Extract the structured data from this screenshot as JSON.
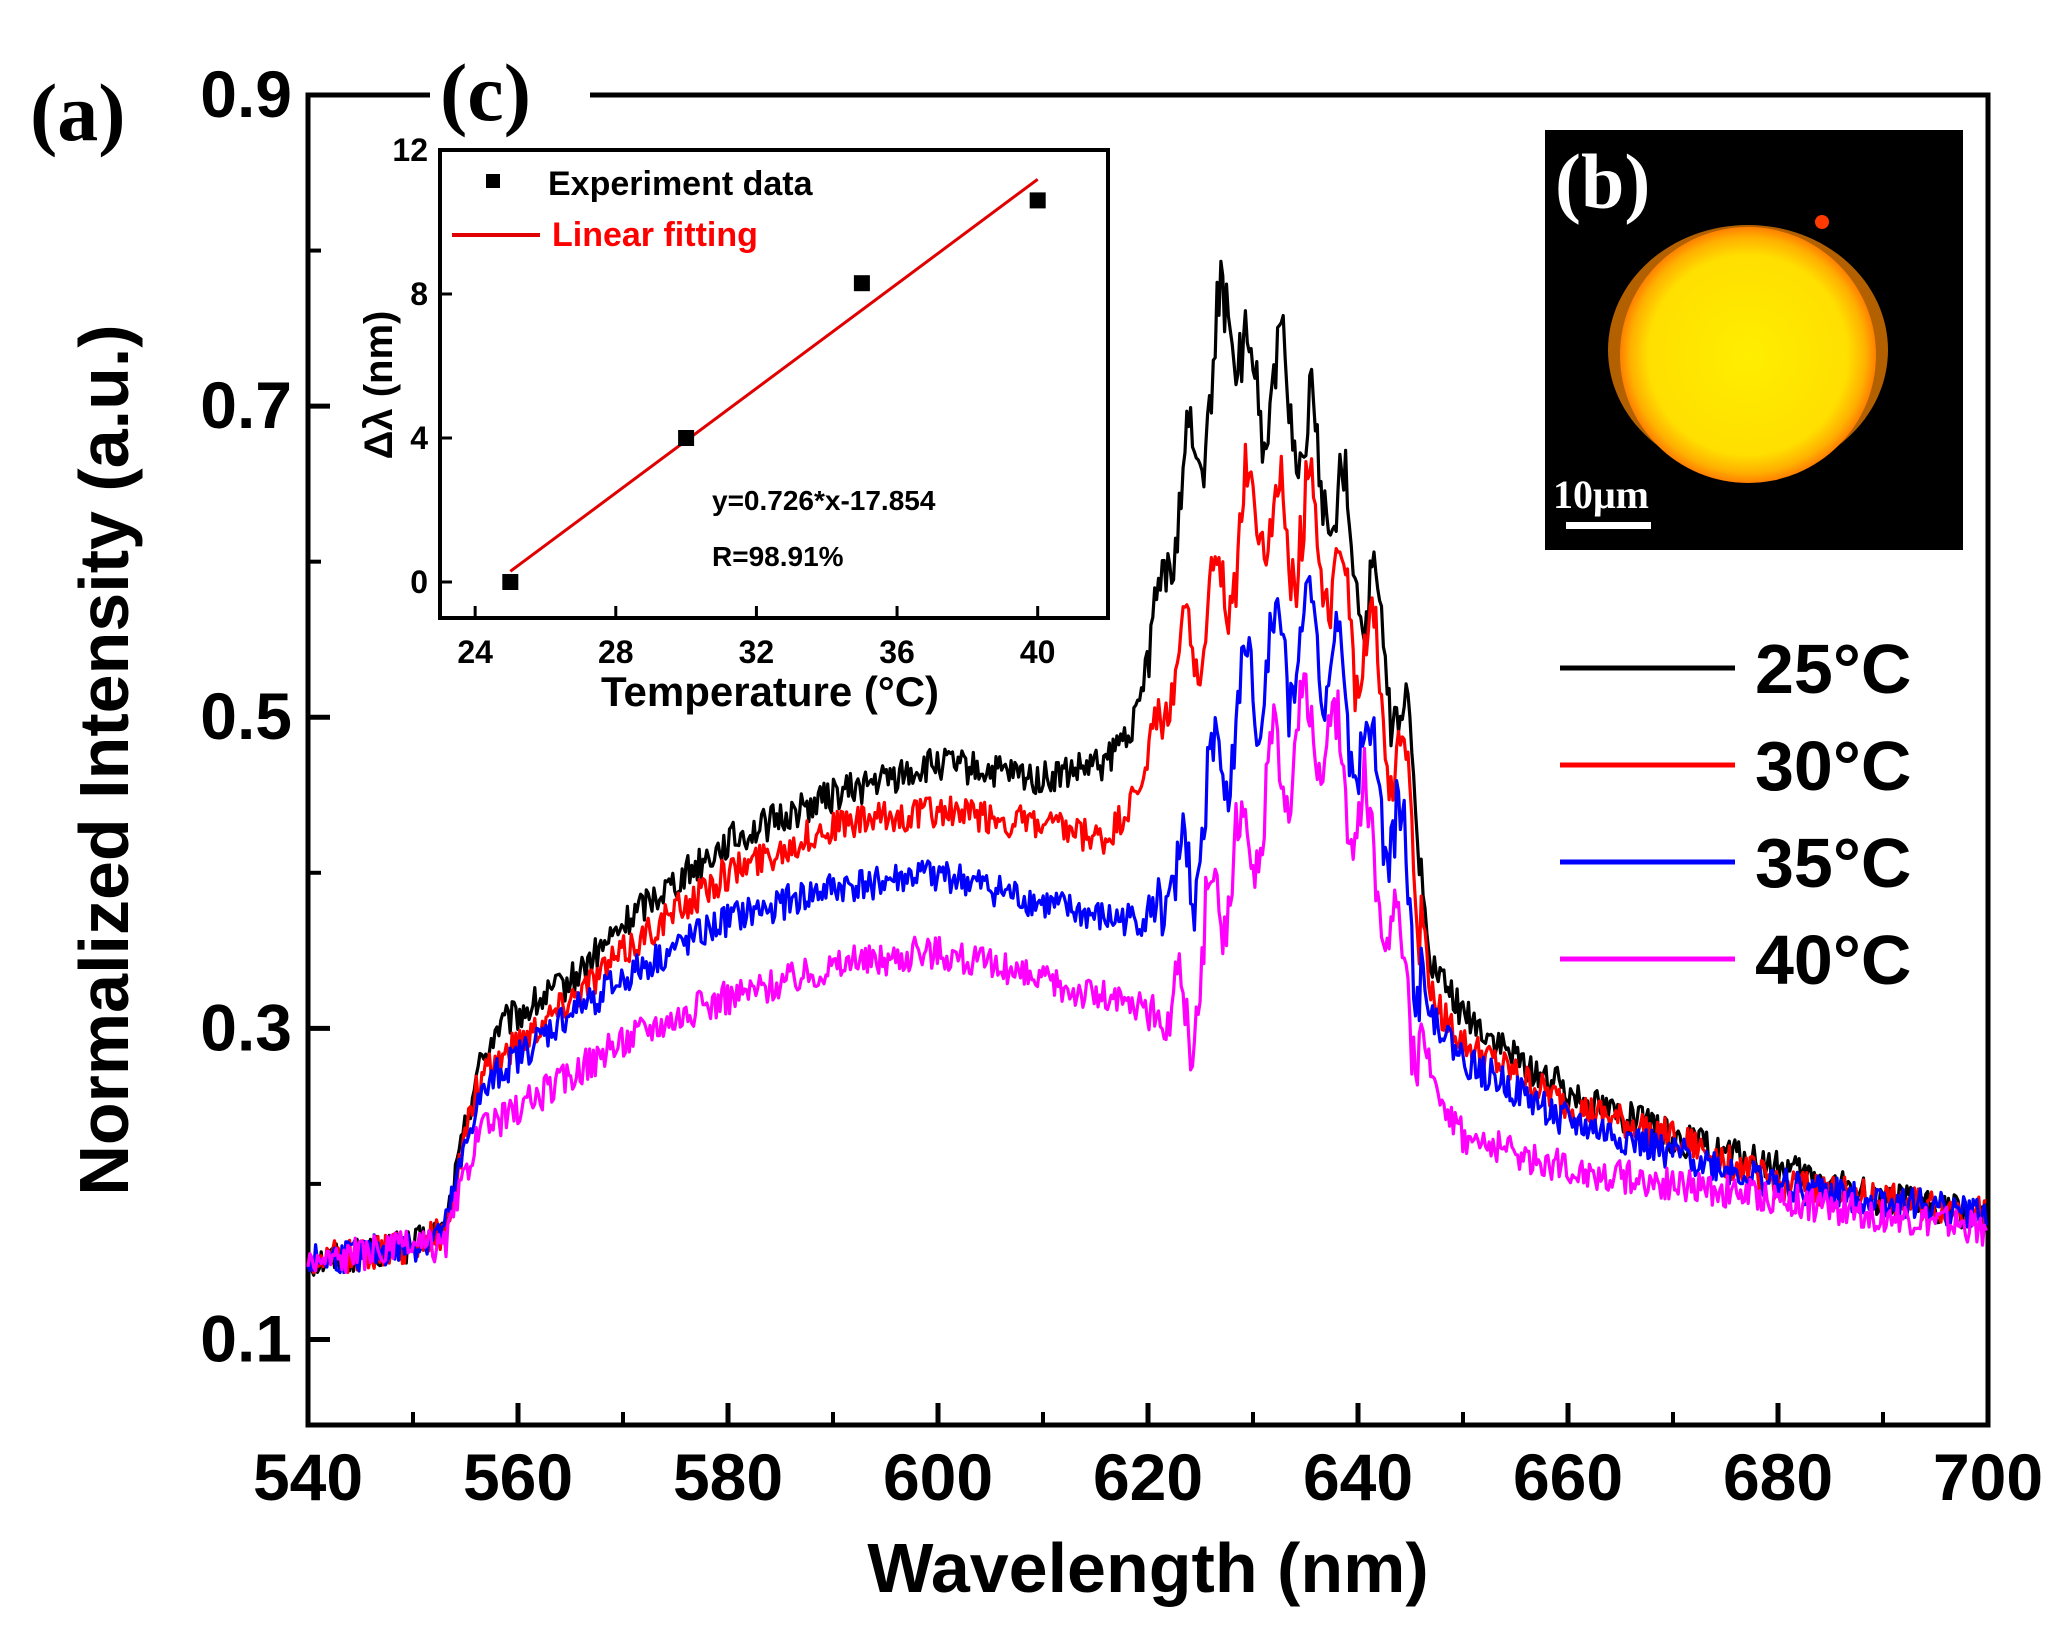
{
  "panel_labels": {
    "a": "(a)",
    "b": "(b)",
    "c": "(c)"
  },
  "colors": {
    "series_25": "#000000",
    "series_30": "#ff0000",
    "series_35": "#0000ff",
    "series_40": "#ff00ff",
    "fit_line": "#e00000",
    "micro_bg": "#000000",
    "micro_glow": "#ffa000",
    "micro_core": "#ffe800"
  },
  "micrograph": {
    "scale_bar_label": "10μm"
  },
  "chart_data": [
    {
      "id": "main",
      "type": "line",
      "xlabel": "Wavelength (nm)",
      "ylabel": "Normalized Intensity (a.u.)",
      "xlim": [
        540,
        700
      ],
      "ylim": [
        0.045,
        0.9
      ],
      "x_ticks": [
        540,
        560,
        580,
        600,
        620,
        640,
        660,
        680,
        700
      ],
      "y_ticks": [
        0.1,
        0.3,
        0.5,
        0.7,
        0.9
      ],
      "x_minor_ticks": [
        550,
        570,
        590,
        610,
        630,
        650,
        670,
        690
      ],
      "y_minor_ticks": [
        0.2,
        0.4,
        0.6,
        0.8
      ],
      "legend_position": "right",
      "series": [
        {
          "name": "25°C",
          "color": "#000000",
          "points": [
            [
              540,
              0.15
            ],
            [
              550,
              0.16
            ],
            [
              553,
              0.17
            ],
            [
              556,
              0.27
            ],
            [
              558,
              0.3
            ],
            [
              565,
              0.33
            ],
            [
              572,
              0.38
            ],
            [
              580,
              0.42
            ],
            [
              590,
              0.45
            ],
            [
              600,
              0.47
            ],
            [
              610,
              0.46
            ],
            [
              616,
              0.47
            ],
            [
              619,
              0.5
            ],
            [
              622,
              0.62
            ],
            [
              625,
              0.68
            ],
            [
              628,
              0.77
            ],
            [
              630,
              0.7
            ],
            [
              633,
              0.72
            ],
            [
              636,
              0.66
            ],
            [
              639,
              0.62
            ],
            [
              642,
              0.56
            ],
            [
              645,
              0.47
            ],
            [
              647,
              0.34
            ],
            [
              650,
              0.31
            ],
            [
              655,
              0.28
            ],
            [
              660,
              0.26
            ],
            [
              670,
              0.23
            ],
            [
              680,
              0.21
            ],
            [
              690,
              0.19
            ],
            [
              700,
              0.18
            ]
          ]
        },
        {
          "name": "30°C",
          "color": "#ff0000",
          "points": [
            [
              540,
              0.15
            ],
            [
              550,
              0.16
            ],
            [
              553,
              0.17
            ],
            [
              556,
              0.26
            ],
            [
              558,
              0.28
            ],
            [
              565,
              0.32
            ],
            [
              572,
              0.36
            ],
            [
              580,
              0.4
            ],
            [
              590,
              0.43
            ],
            [
              600,
              0.44
            ],
            [
              610,
              0.43
            ],
            [
              616,
              0.42
            ],
            [
              619,
              0.45
            ],
            [
              622,
              0.52
            ],
            [
              625,
              0.56
            ],
            [
              628,
              0.6
            ],
            [
              630,
              0.64
            ],
            [
              633,
              0.62
            ],
            [
              636,
              0.62
            ],
            [
              639,
              0.57
            ],
            [
              642,
              0.52
            ],
            [
              645,
              0.44
            ],
            [
              647,
              0.32
            ],
            [
              650,
              0.29
            ],
            [
              655,
              0.27
            ],
            [
              660,
              0.25
            ],
            [
              670,
              0.23
            ],
            [
              680,
              0.2
            ],
            [
              690,
              0.19
            ],
            [
              700,
              0.18
            ]
          ]
        },
        {
          "name": "35°C",
          "color": "#0000ff",
          "points": [
            [
              540,
              0.15
            ],
            [
              550,
              0.16
            ],
            [
              553,
              0.17
            ],
            [
              556,
              0.25
            ],
            [
              558,
              0.27
            ],
            [
              565,
              0.31
            ],
            [
              572,
              0.34
            ],
            [
              580,
              0.37
            ],
            [
              590,
              0.39
            ],
            [
              600,
              0.4
            ],
            [
              610,
              0.38
            ],
            [
              616,
              0.37
            ],
            [
              620,
              0.37
            ],
            [
              624,
              0.4
            ],
            [
              627,
              0.48
            ],
            [
              630,
              0.52
            ],
            [
              633,
              0.54
            ],
            [
              636,
              0.55
            ],
            [
              639,
              0.5
            ],
            [
              642,
              0.46
            ],
            [
              645,
              0.38
            ],
            [
              647,
              0.31
            ],
            [
              650,
              0.28
            ],
            [
              655,
              0.26
            ],
            [
              660,
              0.24
            ],
            [
              670,
              0.22
            ],
            [
              680,
              0.2
            ],
            [
              690,
              0.19
            ],
            [
              700,
              0.18
            ]
          ]
        },
        {
          "name": "40°C",
          "color": "#ff00ff",
          "points": [
            [
              540,
              0.15
            ],
            [
              550,
              0.16
            ],
            [
              553,
              0.16
            ],
            [
              556,
              0.23
            ],
            [
              558,
              0.24
            ],
            [
              565,
              0.27
            ],
            [
              572,
              0.3
            ],
            [
              580,
              0.32
            ],
            [
              590,
              0.34
            ],
            [
              600,
              0.35
            ],
            [
              610,
              0.33
            ],
            [
              616,
              0.32
            ],
            [
              620,
              0.31
            ],
            [
              624,
              0.31
            ],
            [
              627,
              0.39
            ],
            [
              630,
              0.43
            ],
            [
              633,
              0.47
            ],
            [
              636,
              0.49
            ],
            [
              639,
              0.46
            ],
            [
              642,
              0.4
            ],
            [
              645,
              0.32
            ],
            [
              647,
              0.27
            ],
            [
              650,
              0.23
            ],
            [
              655,
              0.22
            ],
            [
              660,
              0.21
            ],
            [
              670,
              0.2
            ],
            [
              680,
              0.19
            ],
            [
              690,
              0.18
            ],
            [
              700,
              0.17
            ]
          ]
        }
      ]
    },
    {
      "id": "inset",
      "type": "scatter",
      "xlabel": "Temperature (°C)",
      "ylabel": "Δλ (nm)",
      "xlim": [
        23,
        42
      ],
      "ylim": [
        -1,
        12
      ],
      "x_ticks": [
        24,
        28,
        32,
        36,
        40
      ],
      "y_ticks": [
        0,
        4,
        8,
        12
      ],
      "series": [
        {
          "name": "Experiment data",
          "color": "#000000",
          "marker": "square",
          "x": [
            25,
            30,
            35,
            40
          ],
          "y": [
            0,
            4.0,
            8.3,
            10.6
          ]
        },
        {
          "name": "Linear fitting",
          "color": "#e00000",
          "type": "line",
          "slope": 0.726,
          "intercept": -17.854,
          "x_range": [
            25,
            40
          ]
        }
      ],
      "annotations": [
        "y=0.726*x-17.854",
        "R=98.91%"
      ]
    }
  ]
}
